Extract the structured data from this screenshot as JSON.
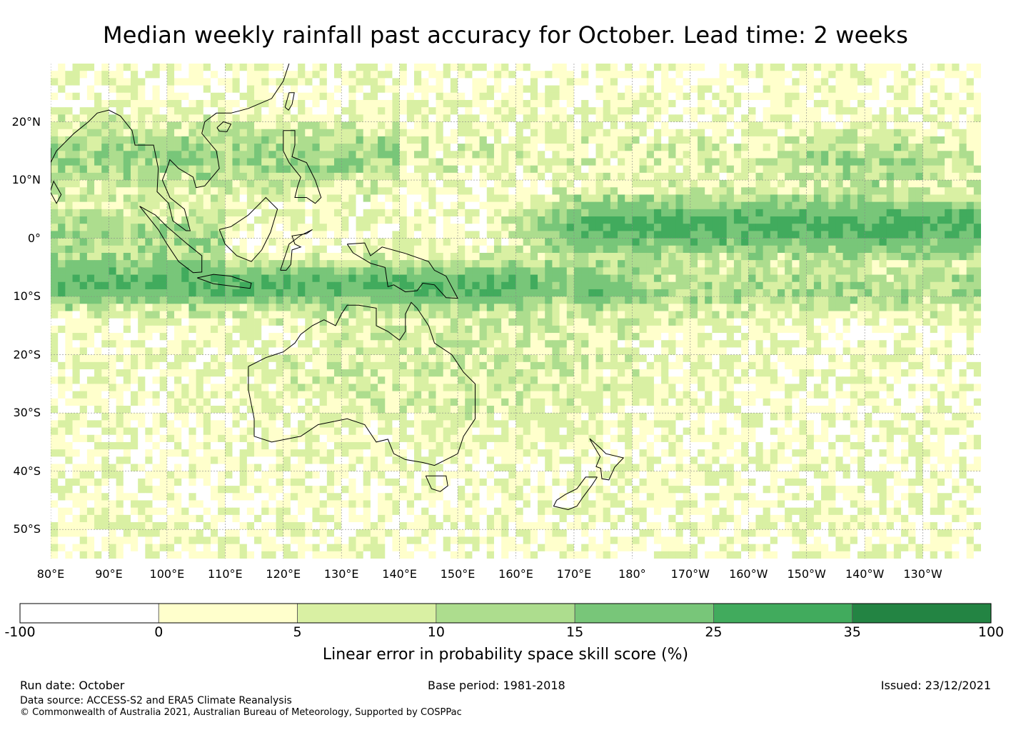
{
  "title": "Median weekly rainfall past accuracy for October. Lead time: 2 weeks",
  "map": {
    "lon_range": [
      80,
      240
    ],
    "lat_range": [
      -55,
      30
    ],
    "lat_ticks": [
      "20°N",
      "10°N",
      "0°",
      "10°S",
      "20°S",
      "30°S",
      "40°S",
      "50°S"
    ],
    "lon_ticks": [
      "80°E",
      "90°E",
      "100°E",
      "110°E",
      "120°E",
      "130°E",
      "140°E",
      "150°E",
      "160°E",
      "170°E",
      "180°",
      "170°W",
      "160°W",
      "150°W",
      "140°W",
      "130°W"
    ],
    "gridlines": true,
    "coastline_color": "#000000"
  },
  "colorbar": {
    "tick_labels": [
      "-100",
      "0",
      "5",
      "10",
      "15",
      "25",
      "35",
      "100"
    ],
    "bins": [
      {
        "from": -100,
        "to": 0,
        "color": "#ffffff"
      },
      {
        "from": 0,
        "to": 5,
        "color": "#ffffcc"
      },
      {
        "from": 5,
        "to": 10,
        "color": "#d9f0a3"
      },
      {
        "from": 10,
        "to": 15,
        "color": "#addd8e"
      },
      {
        "from": 15,
        "to": 25,
        "color": "#78c679"
      },
      {
        "from": 25,
        "to": 35,
        "color": "#41ab5d"
      },
      {
        "from": 35,
        "to": 100,
        "color": "#238443"
      }
    ],
    "label": "Linear error in probability space skill score (%)"
  },
  "footer": {
    "run_date": "Run date: October",
    "base_period": "Base period: 1981-2018",
    "issued": "Issued: 23/12/2021",
    "data_source": "Data source: ACCESS-S2 and ERA5 Climate Reanalysis",
    "copyright": "© Commonwealth of Australia 2021, Australian Bureau of Meteorology, Supported by COSPPac"
  }
}
